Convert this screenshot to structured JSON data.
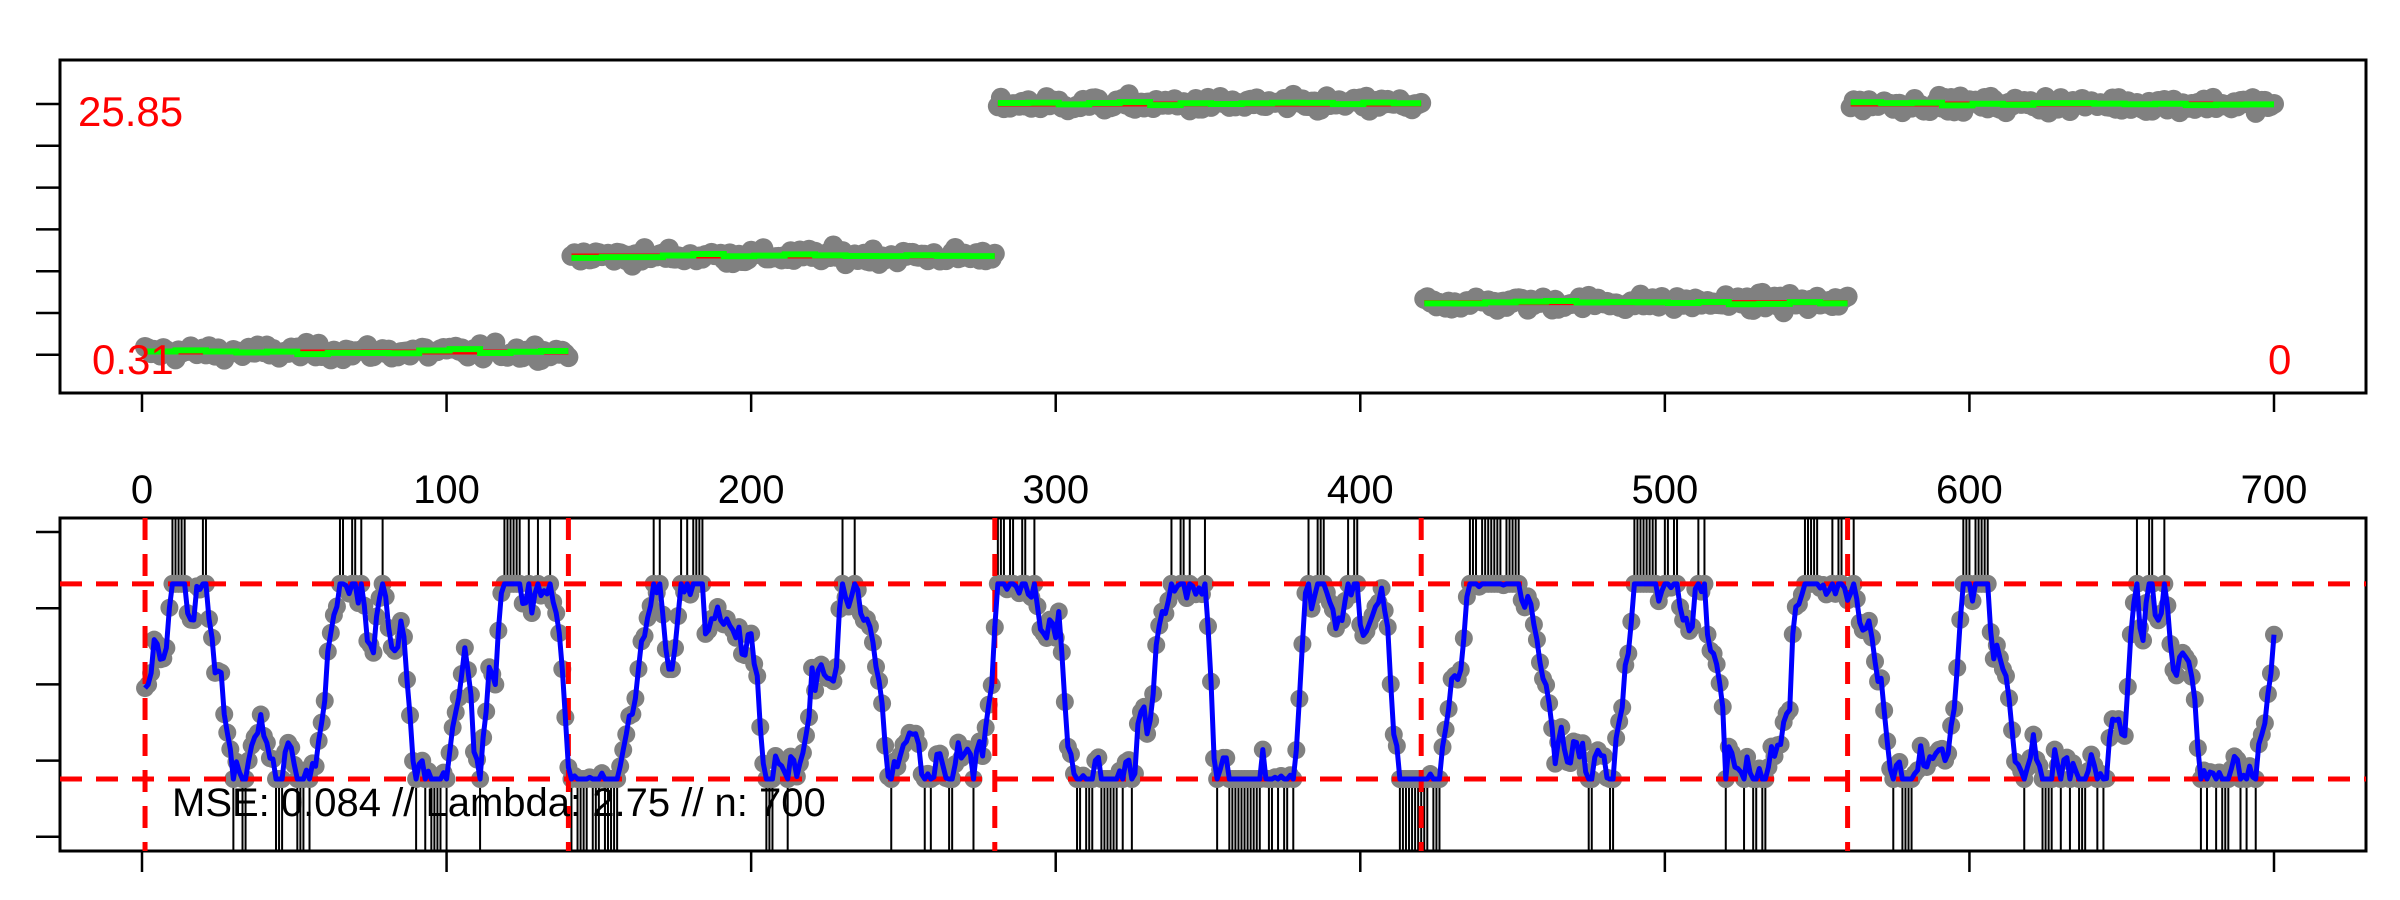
{
  "chart_data": [
    {
      "type": "scatter",
      "panel": "top",
      "x_range": [
        0,
        700
      ],
      "y_range": [
        0,
        27
      ],
      "annotations": {
        "top_left": "25.85",
        "bottom_left": "0.31",
        "bottom_right": "0"
      },
      "segments": [
        {
          "start": 1,
          "end": 140,
          "level": 0.31
        },
        {
          "start": 141,
          "end": 280,
          "level": 10.2
        },
        {
          "start": 281,
          "end": 420,
          "level": 25.85
        },
        {
          "start": 421,
          "end": 560,
          "level": 5.4
        },
        {
          "start": 561,
          "end": 700,
          "level": 25.85
        }
      ],
      "series": [
        {
          "role": "observations",
          "color": "#808080"
        },
        {
          "role": "true-mean",
          "color": "#ff0000"
        },
        {
          "role": "estimate",
          "color": "#00ff00"
        }
      ]
    },
    {
      "type": "line",
      "panel": "bottom",
      "x_range": [
        0,
        700
      ],
      "x_ticks": [
        0,
        100,
        200,
        300,
        400,
        500,
        600,
        700
      ],
      "y_range": [
        0,
        1
      ],
      "thresholds": [
        0.83,
        0.19
      ],
      "changepoints": [
        1,
        140,
        280,
        420,
        560
      ],
      "caption": "MSE: 0.084 // Lambda: 2.75 // n: 700",
      "series": [
        {
          "role": "observations",
          "color": "#808080"
        },
        {
          "role": "fit",
          "color": "#0000ff"
        },
        {
          "role": "threshold",
          "color": "#ff0000"
        },
        {
          "role": "changepoint",
          "color": "#ff0000"
        },
        {
          "role": "saturation-markers",
          "color": "#000000"
        }
      ]
    }
  ]
}
